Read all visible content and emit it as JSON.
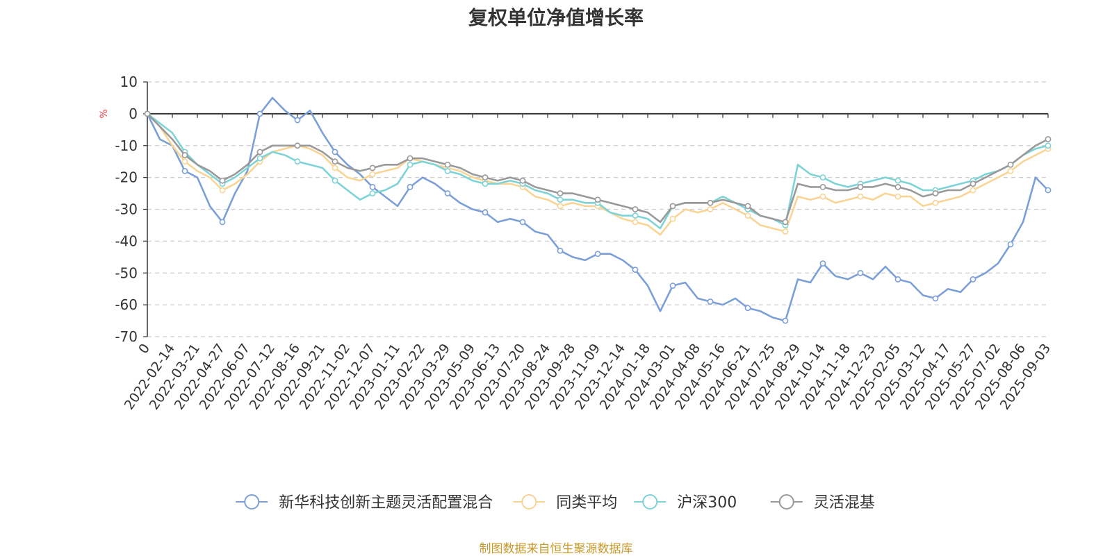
{
  "chart_data": {
    "type": "line",
    "title": "复权单位净值增长率",
    "ylabel": "%",
    "ylim": [
      -70,
      10
    ],
    "yticks": [
      10,
      0,
      -10,
      -20,
      -30,
      -40,
      -50,
      -60,
      -70
    ],
    "x_ticklabels": [
      "0",
      "2022-02-14",
      "2022-03-21",
      "2022-04-27",
      "2022-06-07",
      "2022-07-12",
      "2022-08-16",
      "2022-09-21",
      "2022-11-02",
      "2022-12-07",
      "2023-01-11",
      "2023-02-22",
      "2023-03-29",
      "2023-05-09",
      "2023-06-13",
      "2023-07-20",
      "2023-08-24",
      "2023-09-28",
      "2023-11-09",
      "2023-12-14",
      "2024-01-18",
      "2024-03-01",
      "2024-04-08",
      "2024-05-16",
      "2024-06-21",
      "2024-07-25",
      "2024-08-29",
      "2024-10-14",
      "2024-11-18",
      "2024-12-23",
      "2025-02-05",
      "2025-03-12",
      "2025-04-17",
      "2025-05-27",
      "2025-07-02",
      "2025-08-06",
      "2025-09-03"
    ],
    "grid": true,
    "legend_position": "bottom",
    "series": [
      {
        "name": "新华科技创新主题灵活配置混合",
        "color": "#7b9fd6",
        "values": [
          0,
          -8,
          -10,
          -18,
          -20,
          -29,
          -34,
          -25,
          -18,
          0,
          5,
          1,
          -2,
          1,
          -6,
          -12,
          -16,
          -19,
          -23,
          -26,
          -29,
          -23,
          -20,
          -22,
          -25,
          -28,
          -30,
          -31,
          -34,
          -33,
          -34,
          -37,
          -38,
          -43,
          -45,
          -46,
          -44,
          -44,
          -46,
          -49,
          -54,
          -62,
          -54,
          -53,
          -58,
          -59,
          -60,
          -58,
          -61,
          -62,
          -64,
          -65,
          -52,
          -53,
          -47,
          -51,
          -52,
          -50,
          -52,
          -48,
          -52,
          -53,
          -57,
          -58,
          -55,
          -56,
          -52,
          -50,
          -47,
          -41,
          -34,
          -20,
          -24
        ]
      },
      {
        "name": "同类平均",
        "color": "#f8d495",
        "values": [
          0,
          -4,
          -10,
          -15,
          -18,
          -20,
          -24,
          -22,
          -19,
          -15,
          -12,
          -11,
          -10,
          -11,
          -13,
          -17,
          -20,
          -21,
          -19,
          -18,
          -17,
          -14,
          -15,
          -16,
          -17,
          -18,
          -20,
          -21,
          -22,
          -22,
          -23,
          -26,
          -27,
          -29,
          -28,
          -29,
          -29,
          -31,
          -33,
          -34,
          -35,
          -38,
          -33,
          -30,
          -31,
          -30,
          -28,
          -30,
          -32,
          -35,
          -36,
          -37,
          -26,
          -27,
          -26,
          -28,
          -27,
          -26,
          -27,
          -25,
          -26,
          -26,
          -29,
          -28,
          -27,
          -26,
          -24,
          -22,
          -20,
          -18,
          -15,
          -13,
          -11
        ]
      },
      {
        "name": "沪深300",
        "color": "#7dd3d6",
        "values": [
          0,
          -3,
          -6,
          -12,
          -16,
          -19,
          -22,
          -20,
          -17,
          -14,
          -12,
          -13,
          -15,
          -16,
          -17,
          -21,
          -24,
          -27,
          -25,
          -24,
          -22,
          -16,
          -15,
          -16,
          -18,
          -19,
          -21,
          -22,
          -22,
          -21,
          -22,
          -24,
          -25,
          -27,
          -27,
          -28,
          -28,
          -31,
          -32,
          -32,
          -33,
          -36,
          -29,
          -28,
          -28,
          -28,
          -26,
          -28,
          -30,
          -32,
          -33,
          -35,
          -16,
          -19,
          -20,
          -22,
          -23,
          -22,
          -21,
          -20,
          -21,
          -22,
          -24,
          -24,
          -23,
          -22,
          -21,
          -19,
          -18,
          -16,
          -13,
          -11,
          -10
        ]
      },
      {
        "name": "灵活混基",
        "color": "#999999",
        "values": [
          0,
          -4,
          -8,
          -13,
          -16,
          -18,
          -21,
          -19,
          -16,
          -12,
          -10,
          -10,
          -10,
          -10,
          -12,
          -15,
          -17,
          -18,
          -17,
          -16,
          -16,
          -14,
          -14,
          -15,
          -16,
          -17,
          -19,
          -20,
          -21,
          -20,
          -21,
          -23,
          -24,
          -25,
          -25,
          -26,
          -27,
          -28,
          -29,
          -30,
          -31,
          -34,
          -29,
          -28,
          -28,
          -28,
          -27,
          -28,
          -29,
          -32,
          -33,
          -34,
          -22,
          -23,
          -23,
          -24,
          -24,
          -23,
          -23,
          -22,
          -23,
          -24,
          -26,
          -25,
          -24,
          -24,
          -22,
          -20,
          -18,
          -16,
          -13,
          -10,
          -8
        ]
      }
    ]
  },
  "footer": {
    "source": "制图数据来自恒生聚源数据库"
  }
}
